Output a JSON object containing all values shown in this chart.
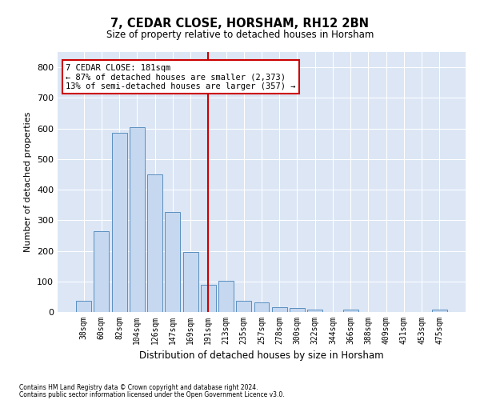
{
  "title": "7, CEDAR CLOSE, HORSHAM, RH12 2BN",
  "subtitle": "Size of property relative to detached houses in Horsham",
  "xlabel": "Distribution of detached houses by size in Horsham",
  "ylabel": "Number of detached properties",
  "categories": [
    "38sqm",
    "60sqm",
    "82sqm",
    "104sqm",
    "126sqm",
    "147sqm",
    "169sqm",
    "191sqm",
    "213sqm",
    "235sqm",
    "257sqm",
    "278sqm",
    "300sqm",
    "322sqm",
    "344sqm",
    "366sqm",
    "388sqm",
    "409sqm",
    "431sqm",
    "453sqm",
    "475sqm"
  ],
  "values": [
    37,
    265,
    585,
    603,
    450,
    328,
    195,
    90,
    103,
    37,
    32,
    17,
    12,
    9,
    0,
    7,
    0,
    0,
    0,
    0,
    7
  ],
  "bar_color": "#c5d8f0",
  "bar_edge_color": "#5a8fc0",
  "highlight_index": 7,
  "highlight_line_color": "#cc0000",
  "annotation_text": "7 CEDAR CLOSE: 181sqm\n← 87% of detached houses are smaller (2,373)\n13% of semi-detached houses are larger (357) →",
  "annotation_box_color": "#cc0000",
  "ylim": [
    0,
    850
  ],
  "yticks": [
    0,
    100,
    200,
    300,
    400,
    500,
    600,
    700,
    800
  ],
  "background_color": "#dce6f5",
  "grid_color": "#ffffff",
  "footer_line1": "Contains HM Land Registry data © Crown copyright and database right 2024.",
  "footer_line2": "Contains public sector information licensed under the Open Government Licence v3.0."
}
